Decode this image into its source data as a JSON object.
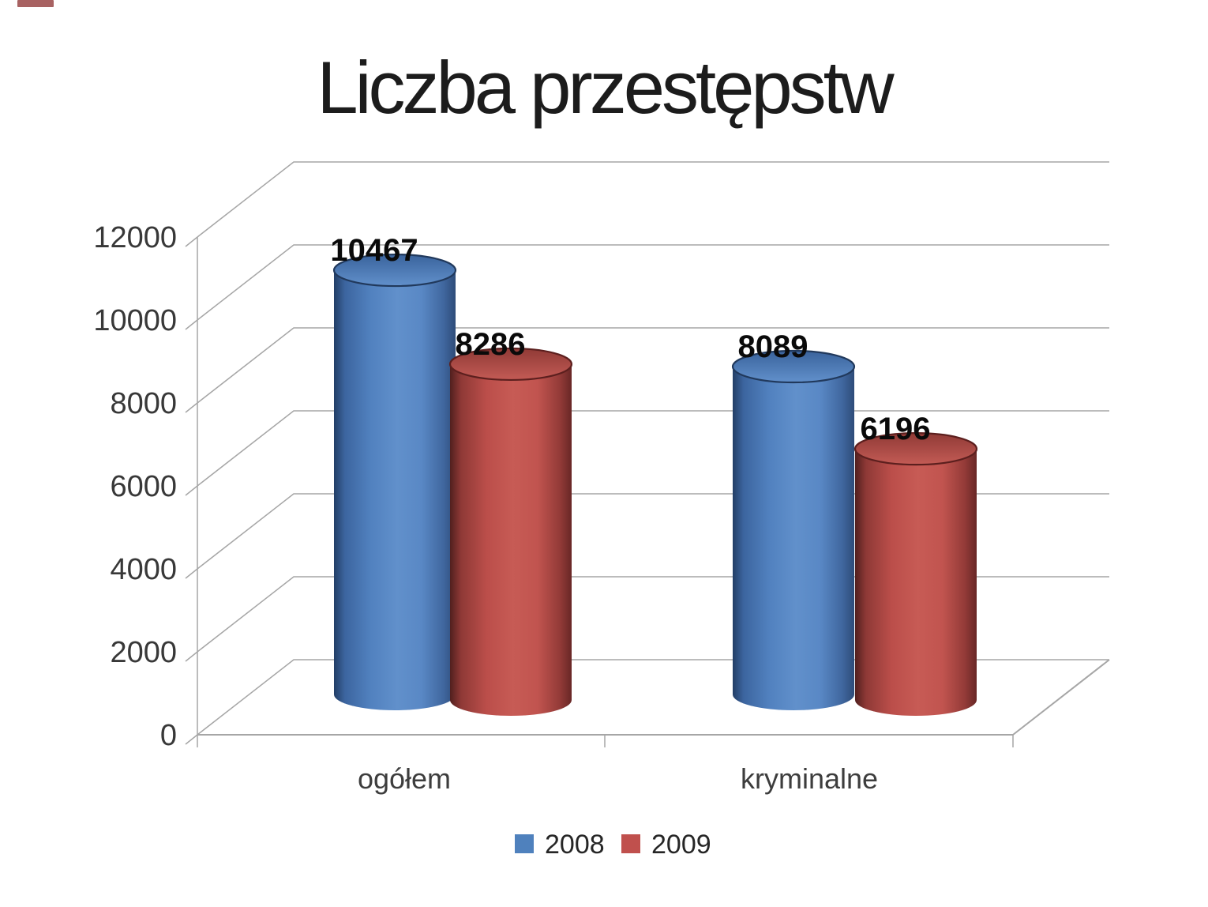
{
  "chart_data": {
    "type": "bar",
    "variant": "3d-cylinder",
    "title": "Liczba przestępstw",
    "categories": [
      "ogółem",
      "kryminalne"
    ],
    "series": [
      {
        "name": "2008",
        "color": "#4f81bd",
        "values": [
          10467,
          8089
        ]
      },
      {
        "name": "2009",
        "color": "#c0504d",
        "values": [
          8286,
          6196
        ]
      }
    ],
    "ylim": [
      0,
      12000
    ],
    "yticks": [
      0,
      2000,
      4000,
      6000,
      8000,
      10000,
      12000
    ],
    "grid": true,
    "legend_position": "bottom",
    "data_labels_shown": true
  },
  "colors": {
    "background": "#ffffff",
    "gridline": "#a6a6a6",
    "axis_text": "#383838",
    "category_text": "#3d3d3d",
    "data_label_text": "#0a0a0a",
    "legend_text": "#262626",
    "title_text": "#1c1c1c",
    "series_2008": "#4f81bd",
    "series_2009": "#c0504d"
  }
}
